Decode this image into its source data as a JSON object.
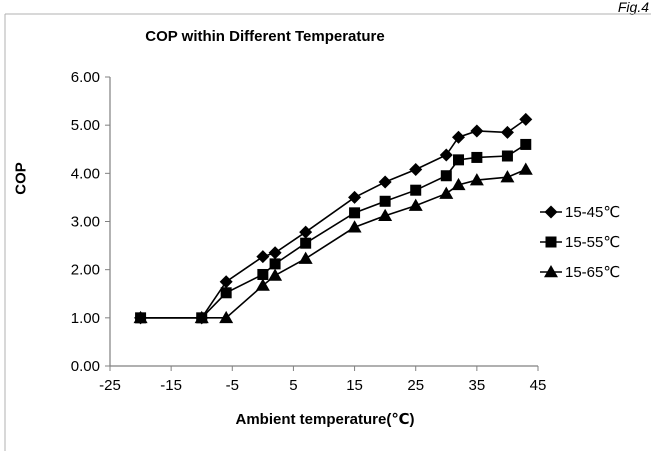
{
  "figure_label": "Fig.4",
  "chart_data": {
    "type": "line",
    "title": "COP within Different Temperature",
    "xlabel": "Ambient temperature(℃)",
    "ylabel": "COP",
    "xlim": [
      -25,
      45
    ],
    "ylim": [
      0,
      6
    ],
    "x_ticks": [
      -25,
      -15,
      -5,
      5,
      15,
      25,
      35,
      45
    ],
    "y_ticks": [
      "0.00",
      "1.00",
      "2.00",
      "3.00",
      "4.00",
      "5.00",
      "6.00"
    ],
    "grid": false,
    "legend_position": "right",
    "series": [
      {
        "name": "15-45℃",
        "marker": "diamond",
        "x": [
          -20,
          -10,
          -6,
          0,
          2,
          7,
          15,
          20,
          25,
          30,
          32,
          35,
          40,
          43
        ],
        "y": [
          1.0,
          1.0,
          1.75,
          2.27,
          2.35,
          2.78,
          3.5,
          3.82,
          4.08,
          4.38,
          4.75,
          4.88,
          4.85,
          5.12
        ]
      },
      {
        "name": "15-55℃",
        "marker": "square",
        "x": [
          -20,
          -10,
          -6,
          0,
          2,
          7,
          15,
          20,
          25,
          30,
          32,
          35,
          40,
          43
        ],
        "y": [
          1.0,
          1.0,
          1.52,
          1.9,
          2.12,
          2.55,
          3.18,
          3.42,
          3.65,
          3.95,
          4.28,
          4.33,
          4.36,
          4.6
        ]
      },
      {
        "name": "15-65℃",
        "marker": "triangle",
        "x": [
          -20,
          -10,
          -6,
          0,
          2,
          7,
          15,
          20,
          25,
          30,
          32,
          35,
          40,
          43
        ],
        "y": [
          1.0,
          1.0,
          1.0,
          1.67,
          1.88,
          2.23,
          2.88,
          3.12,
          3.33,
          3.58,
          3.76,
          3.86,
          3.92,
          4.08
        ]
      }
    ]
  }
}
